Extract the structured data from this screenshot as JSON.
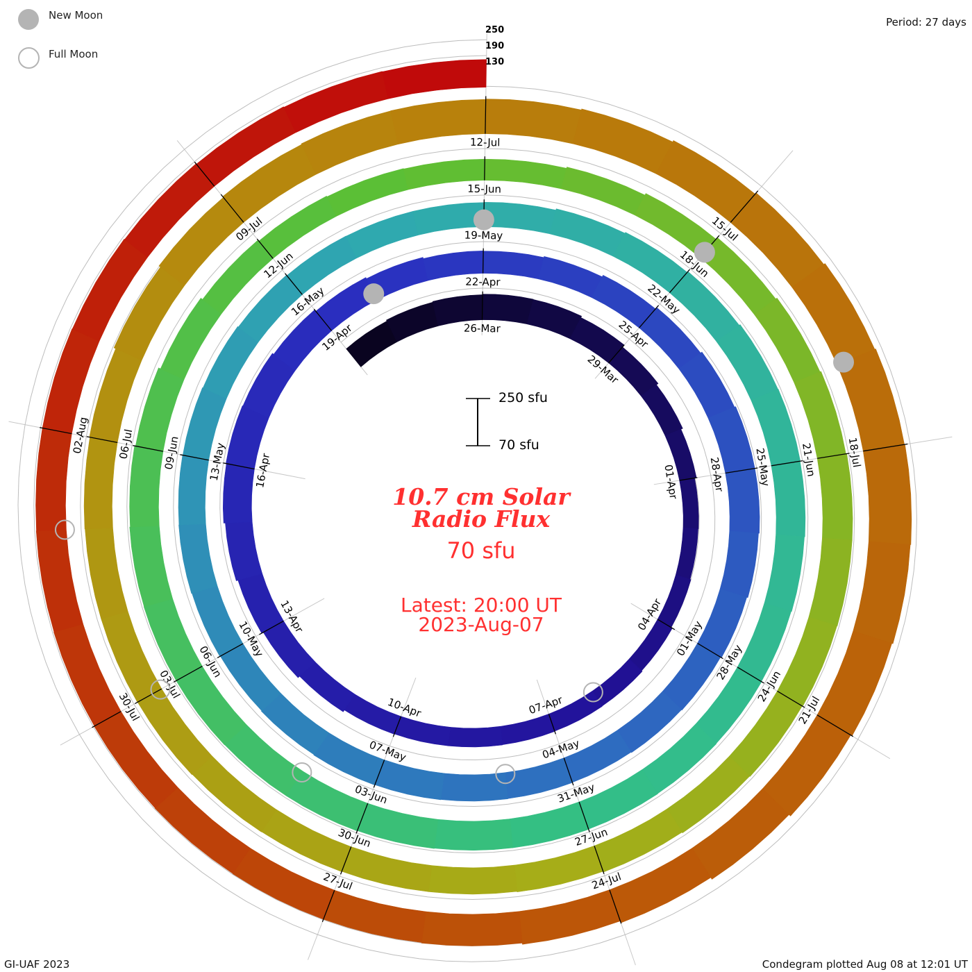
{
  "legend": {
    "new_moon": "New Moon",
    "full_moon": "Full Moon"
  },
  "period_label": "Period: 27 days",
  "level_labels": [
    "250",
    "190",
    "130"
  ],
  "scale_bar": {
    "top": "250 sfu",
    "bottom": "70 sfu"
  },
  "center": {
    "title_line1": "10.7 cm Solar",
    "title_line2": "Radio Flux",
    "baseline": "70 sfu",
    "latest_line1": "Latest: 20:00 UT",
    "latest_line2": "2023-Aug-07"
  },
  "footer": {
    "left": "GI-UAF 2023",
    "right": "Condegram plotted Aug 08 at 12:01 UT"
  },
  "chart_data": {
    "type": "condegram-spiral",
    "title": "10.7 cm Solar Radio Flux",
    "units": "sfu",
    "period_days": 27,
    "start_date": "2023-03-23",
    "end_date": "2023-08-07",
    "baseline_sfu": 70,
    "reference_levels": [
      130,
      190,
      250
    ],
    "values": [
      158,
      162,
      165,
      167,
      166,
      160,
      150,
      142,
      135,
      128,
      127,
      130,
      135,
      138,
      139,
      140,
      141,
      141,
      142,
      150,
      158,
      165,
      172,
      178,
      180,
      178,
      172,
      165,
      160,
      155,
      154,
      158,
      165,
      172,
      178,
      183,
      183,
      180,
      176,
      172,
      170,
      168,
      169,
      170,
      171,
      172,
      170,
      168,
      170,
      172,
      171,
      170,
      168,
      165,
      163,
      162,
      162,
      163,
      168,
      172,
      176,
      180,
      181,
      180,
      178,
      176,
      177,
      178,
      179,
      180,
      180,
      181,
      182,
      182,
      183,
      183,
      182,
      180,
      176,
      168,
      160,
      155,
      152,
      150,
      150,
      155,
      162,
      170,
      176,
      180,
      183,
      183,
      182,
      180,
      178,
      175,
      172,
      170,
      170,
      171,
      172,
      174,
      175,
      175,
      176,
      178,
      185,
      192,
      196,
      199,
      200,
      202,
      206,
      212,
      218,
      224,
      228,
      230,
      228,
      224,
      218,
      210,
      202,
      195,
      190,
      188,
      188,
      187,
      186,
      185,
      184,
      183,
      183,
      182,
      180,
      178,
      176,
      175
    ],
    "date_labels": [
      "26-Mar",
      "29-Mar",
      "01-Apr",
      "04-Apr",
      "07-Apr",
      "10-Apr",
      "13-Apr",
      "16-Apr",
      "19-Apr",
      "22-Apr",
      "25-Apr",
      "28-Apr",
      "01-May",
      "04-May",
      "07-May",
      "10-May",
      "13-May",
      "16-May",
      "19-May",
      "22-May",
      "25-May",
      "28-May",
      "31-May",
      "03-Jun",
      "06-Jun",
      "09-Jun",
      "12-Jun",
      "15-Jun",
      "18-Jun",
      "21-Jun",
      "24-Jun",
      "27-Jun",
      "30-Jun",
      "03-Jul",
      "06-Jul",
      "09-Jul",
      "12-Jul",
      "15-Jul",
      "18-Jul",
      "21-Jul",
      "24-Jul",
      "27-Jul",
      "30-Jul",
      "02-Aug"
    ],
    "first_label_day_index": 3,
    "label_step_days": 3,
    "new_moon_day_index": [
      28,
      57,
      87,
      116
    ],
    "full_moon_day_index": [
      14,
      43,
      73,
      102,
      131
    ],
    "colormap": [
      "#0a0420",
      "#22129a",
      "#2a2fc0",
      "#2e6cc0",
      "#2fa9b0",
      "#33bf86",
      "#5cbf35",
      "#a6ad18",
      "#b8820c",
      "#bc5508",
      "#c00a0a"
    ]
  }
}
